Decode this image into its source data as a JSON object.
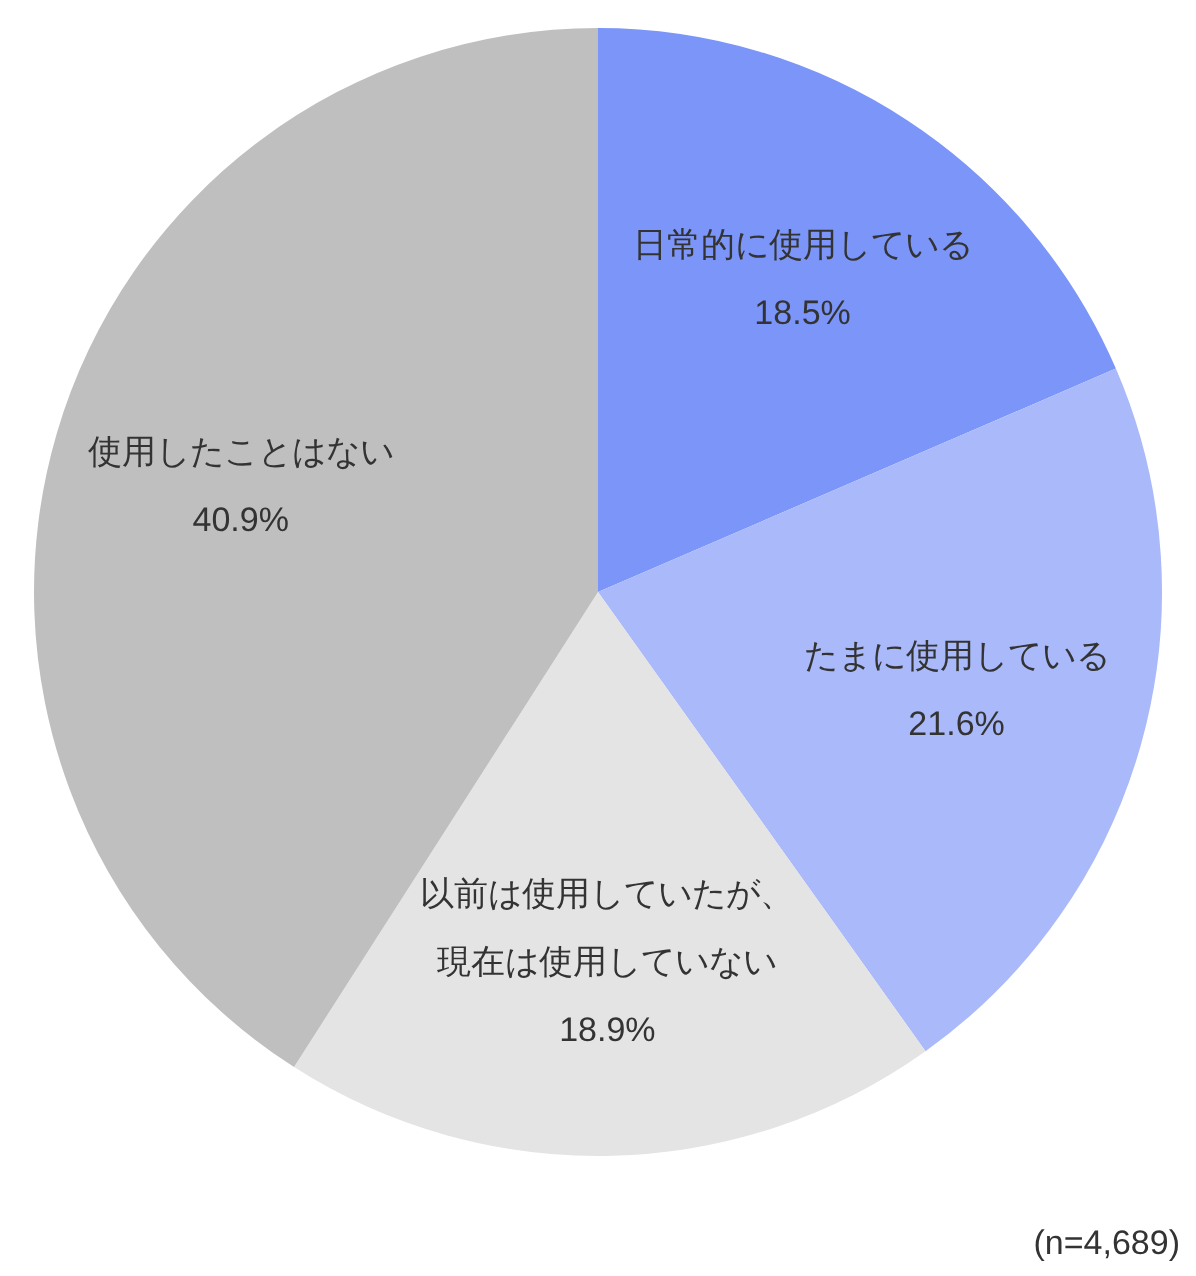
{
  "chart_data": {
    "type": "pie",
    "categories": [
      "日常的に使用している",
      "たまに使用している",
      "以前は使用していたが、現在は使用していない",
      "使用したことはない"
    ],
    "values": [
      18.5,
      21.6,
      18.9,
      40.9
    ],
    "value_labels": [
      "18.5%",
      "21.6%",
      "18.9%",
      "40.9%"
    ],
    "colors": [
      "#7b96f8",
      "#a9b9f9",
      "#e4e4e4",
      "#bfbfbf"
    ],
    "legend": false,
    "annotations": [
      "(n=4,689)"
    ]
  }
}
